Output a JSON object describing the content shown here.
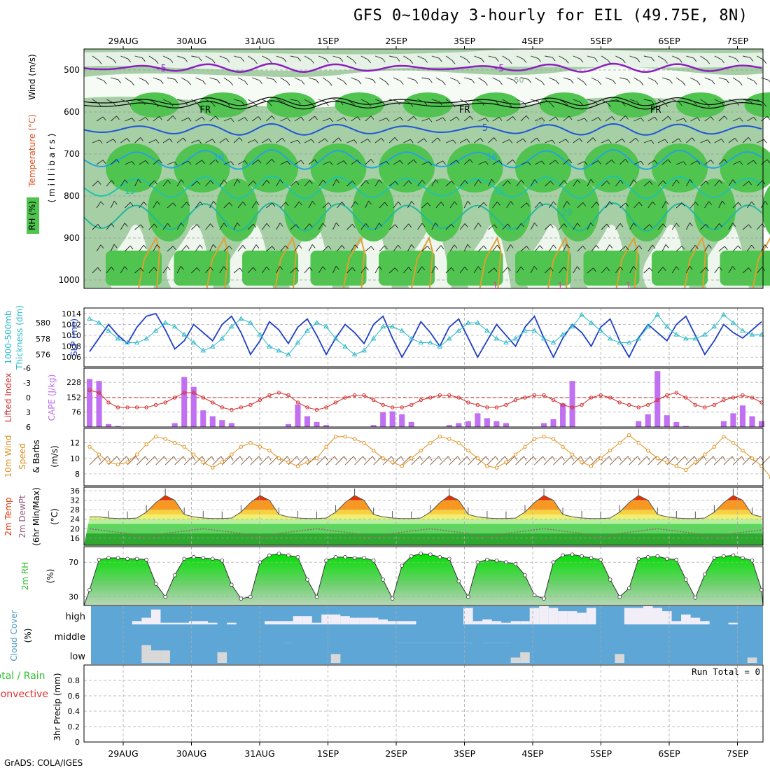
{
  "title": "GFS 0~10day 3-hourly for EIL (49.75E, 8N)",
  "footer": "GrADS: COLA/IGES",
  "dates": [
    "29AUG",
    "30AUG",
    "31AUG",
    "1SEP",
    "2SEP",
    "3SEP",
    "4SEP",
    "5SEP",
    "6SEP",
    "7SEP"
  ],
  "colors": {
    "rh_dark": "#4fc44f",
    "rh_mid": "#a6cfa6",
    "rh_light": "#e6f2e6",
    "isotherm_purple": "#8b1fbf",
    "isotherm_blue": "#1f55d6",
    "isotherm_cyan": "#1fa8d6",
    "isotherm_teal": "#1fc4a8",
    "isotherm_orange": "#e0a030",
    "freezing": "#000000",
    "slp": "#1f3fc8",
    "thickness": "#2ab8c8",
    "lifted": "#d43030",
    "cape": "#c070f0",
    "wind": "#e09020",
    "barb": "#8a6040",
    "temp_red": "#e83000",
    "dew": "#9a6080",
    "rh2m": "#2fbf2f",
    "cloud_bg": "#5da6d6",
    "cloud_fill": "#f2eef8",
    "precip_total": "#2fbf2f",
    "precip_conv": "#e03030"
  },
  "chart_data": [
    {
      "type": "area",
      "name": "sounding",
      "ylabel": [
        "RH (%)",
        "Temperature (°C)",
        "Wind (m/s)",
        "( m i l l i b a r s )"
      ],
      "yticks": [
        500,
        600,
        700,
        800,
        900,
        1000
      ],
      "isotherm_labels": [
        {
          "text": "-5",
          "day": 0.55
        },
        {
          "text": "-5",
          "day": 5.5
        },
        {
          "text": "FR",
          "day": 1.2
        },
        {
          "text": "FR",
          "day": 5.0
        },
        {
          "text": "FR",
          "day": 7.8
        },
        {
          "text": "5",
          "day": 5.3
        },
        {
          "text": "10",
          "day": 1.4
        },
        {
          "text": "10",
          "day": 5.4
        },
        {
          "text": "15",
          "day": 0.1
        },
        {
          "text": "15",
          "day": 5.5
        },
        {
          "text": "20",
          "day": 6.5
        },
        {
          "text": "1",
          "day": 5.45
        },
        {
          "text": "1",
          "day": 6.4
        },
        {
          "text": "1",
          "day": 7.4
        }
      ],
      "annotations": [
        {
          "text": "50",
          "day": 5.8
        },
        {
          "text": "70",
          "day": 6.1
        }
      ]
    },
    {
      "type": "line",
      "name": "slp_thickness",
      "left_label": [
        "1000-500mb",
        "Thickness (dm)"
      ],
      "right_label": "SLP (mb)",
      "left_ticks": [
        576,
        578,
        580
      ],
      "right_ticks": [
        1006,
        1008,
        1010,
        1012,
        1014
      ],
      "series": [
        {
          "name": "SLP (mb)",
          "axis": "right",
          "values": [
            1007,
            1009.5,
            1012,
            1010,
            1008.5,
            1011.5,
            1013.5,
            1014,
            1011,
            1007.5,
            1009,
            1012,
            1010.5,
            1009,
            1012,
            1013.5,
            1010.5,
            1006.5,
            1009,
            1012.5,
            1011,
            1008.5,
            1011.5,
            1013,
            1010,
            1006.5,
            1009.5,
            1012,
            1010.5,
            1008.5,
            1012,
            1013.5,
            1009.5,
            1006,
            1009,
            1012.5,
            1010.5,
            1008,
            1011.5,
            1013,
            1009.5,
            1006,
            1009,
            1012,
            1010,
            1008,
            1011.5,
            1013.5,
            1009.5,
            1006,
            1009.5,
            1012,
            1010.5,
            1008,
            1011.5,
            1013,
            1009,
            1006,
            1009.5,
            1012,
            1010.5,
            1009,
            1012,
            1013.5,
            1010,
            1006.5,
            1009,
            1012,
            1010.5,
            1009.5,
            1011,
            1012.5
          ]
        },
        {
          "name": "1000-500mb Thickness (dm)",
          "axis": "left",
          "values": [
            580.5,
            580,
            579,
            578,
            577.5,
            577.5,
            578,
            579,
            580,
            579.5,
            578.5,
            577.5,
            576.5,
            577,
            578,
            579.5,
            580.5,
            580,
            578.5,
            577,
            576.5,
            576,
            577.5,
            579,
            580,
            579.5,
            578,
            577,
            576,
            576.5,
            578,
            579.5,
            579.5,
            579,
            578,
            577.5,
            577.5,
            577,
            578,
            579,
            580,
            580,
            579,
            578,
            577.5,
            578,
            579,
            579,
            578,
            577.5,
            578.5,
            579.5,
            581,
            580,
            579,
            578,
            577.5,
            577.5,
            578,
            579.5,
            581,
            579.5,
            578.5,
            578,
            578,
            578.5,
            579.5,
            581,
            580,
            579,
            578.5,
            578.5
          ]
        }
      ]
    },
    {
      "type": "bar",
      "name": "lifted_cape",
      "left_label": "Lifted Index",
      "right_label": "CAPE (J/kg)",
      "left_ticks": [
        -6,
        -3,
        0,
        3,
        6
      ],
      "right_ticks": [
        76,
        152,
        228
      ],
      "series": [
        {
          "name": "CAPE (J/kg)",
          "values": [
            245,
            235,
            15,
            5,
            0,
            0,
            0,
            0,
            0,
            20,
            255,
            205,
            85,
            55,
            35,
            20,
            0,
            0,
            0,
            0,
            0,
            15,
            115,
            55,
            25,
            10,
            0,
            0,
            0,
            0,
            10,
            75,
            80,
            65,
            25,
            0,
            0,
            0,
            10,
            20,
            30,
            70,
            45,
            30,
            20,
            0,
            0,
            0,
            20,
            40,
            120,
            235,
            0,
            0,
            0,
            0,
            0,
            0,
            30,
            65,
            285,
            60,
            25,
            5,
            0,
            0,
            0,
            30,
            70,
            110,
            55,
            30
          ]
        },
        {
          "name": "Lifted Index",
          "values": [
            -1.5,
            -1,
            1,
            2,
            2,
            2,
            2,
            1.5,
            1,
            0,
            -1,
            -1,
            0,
            1,
            2,
            2.5,
            2,
            1.5,
            0.5,
            -0.5,
            -1,
            -0.5,
            1,
            2,
            2.5,
            2,
            1,
            0,
            -0.5,
            -0.5,
            0.5,
            1.5,
            2,
            2,
            1.5,
            0.5,
            0,
            -0.5,
            -0.5,
            0,
            1,
            1.5,
            2,
            2,
            1.5,
            0.5,
            0,
            -0.5,
            -0.5,
            0.5,
            1.5,
            2,
            1.5,
            0,
            -0.5,
            0,
            1,
            1.5,
            2,
            1.5,
            0.5,
            -0.5,
            -1,
            0,
            1.5,
            2,
            1.5,
            0.5,
            0,
            -0.5,
            0,
            1
          ]
        }
      ]
    },
    {
      "type": "line",
      "name": "wind10m",
      "left_label": [
        "10m Wind",
        "Speed",
        "& Barbs"
      ],
      "unit": "(m/s)",
      "yticks": [
        8,
        10,
        12
      ],
      "series": [
        {
          "name": "10m Wind Speed",
          "values": [
            11.5,
            10.5,
            9.5,
            9.2,
            9.5,
            10.5,
            11.8,
            12.8,
            12.5,
            12,
            11.5,
            10.5,
            9.5,
            8.8,
            9.5,
            10.5,
            11.5,
            12,
            11.5,
            11,
            10,
            9.5,
            9,
            9.5,
            10,
            11.5,
            12.8,
            12.8,
            12.5,
            12,
            11,
            10,
            9.5,
            9,
            10,
            11,
            12,
            12.8,
            12.5,
            12,
            11,
            10,
            9,
            8.8,
            9.5,
            10.5,
            11.5,
            12.5,
            12.8,
            12.5,
            11.5,
            10.5,
            9.5,
            9,
            10,
            11,
            12,
            13,
            12,
            11,
            10,
            9.5,
            9,
            8.5,
            9.5,
            10.5,
            11.5,
            12.8,
            12,
            11,
            10,
            9,
            7.5,
            12.5
          ]
        }
      ]
    },
    {
      "type": "area",
      "name": "temp2m",
      "left_label": [
        "2m Temp",
        "2m DewPt",
        "(6hr Min/Max)"
      ],
      "unit": "(°C)",
      "yticks": [
        16,
        20,
        24,
        28,
        32,
        36
      ],
      "series": [
        {
          "name": "2m Temp",
          "values": [
            25,
            25,
            24.5,
            24.3,
            24.3,
            24.5,
            27,
            31,
            34,
            32,
            26,
            25,
            24.5,
            24.3,
            24.3,
            24.5,
            27,
            31,
            34,
            32,
            26,
            25,
            24.5,
            24.3,
            24.3,
            24.5,
            27,
            31,
            34,
            32,
            26,
            25,
            24.5,
            24.3,
            24.3,
            24.5,
            27,
            31,
            34,
            32,
            26,
            25,
            24.5,
            24.3,
            24.3,
            24.5,
            27,
            31,
            34,
            32,
            26,
            25,
            24.5,
            24.3,
            24.3,
            24.5,
            27,
            31,
            34,
            32,
            26,
            25,
            24.5,
            24.3,
            24.3,
            24.5,
            27,
            31,
            34,
            32,
            26,
            25
          ]
        },
        {
          "name": "2m DewPt",
          "values": [
            20,
            19.5,
            19,
            18.5,
            18,
            17,
            16,
            17,
            18,
            18.5,
            19,
            19.5,
            20,
            19.5,
            19,
            18.5,
            18,
            17,
            16,
            17,
            18,
            18.5,
            19,
            19.5,
            20,
            19.5,
            19,
            18.5,
            18,
            17,
            16,
            17,
            18,
            18.5,
            19,
            19.5,
            20,
            19.5,
            19,
            18.5,
            18,
            17,
            16,
            17,
            18,
            18.5,
            19,
            19.5,
            20,
            19.5,
            19,
            18.5,
            18,
            17,
            16,
            17,
            18,
            18.5,
            19,
            19.5,
            20,
            19.5,
            19,
            18.5,
            18,
            17,
            16,
            17,
            18,
            18.5,
            19,
            19.5
          ]
        }
      ]
    },
    {
      "type": "area",
      "name": "rh2m",
      "left_label": "2m RH",
      "unit": "(%)",
      "yticks": [
        30,
        70
      ],
      "series": [
        {
          "name": "2m RH",
          "values": [
            38,
            73,
            75,
            75,
            74,
            74,
            73,
            45,
            30,
            55,
            74,
            76,
            75,
            74,
            72,
            44,
            28,
            30,
            70,
            78,
            80,
            78,
            76,
            50,
            30,
            72,
            76,
            76,
            75,
            75,
            72,
            50,
            28,
            66,
            77,
            80,
            79,
            76,
            74,
            48,
            30,
            70,
            73,
            72,
            70,
            68,
            55,
            32,
            28,
            70,
            78,
            79,
            77,
            75,
            73,
            50,
            30,
            40,
            74,
            76,
            77,
            74,
            73,
            50,
            29,
            56,
            75,
            77,
            78,
            75,
            72,
            38
          ]
        }
      ]
    },
    {
      "type": "bar",
      "name": "cloud",
      "left_label": [
        "Cloud Cover",
        "(%)"
      ],
      "yticks": [
        "high",
        "middle",
        "low"
      ],
      "series": [
        {
          "name": "high",
          "values": [
            0,
            0,
            0,
            0,
            0,
            10,
            20,
            45,
            5,
            5,
            5,
            10,
            10,
            5,
            0,
            5,
            0,
            0,
            0,
            10,
            10,
            10,
            25,
            25,
            5,
            30,
            30,
            25,
            20,
            20,
            20,
            15,
            10,
            10,
            10,
            0,
            0,
            0,
            0,
            0,
            50,
            10,
            15,
            10,
            5,
            10,
            10,
            50,
            55,
            50,
            40,
            40,
            35,
            50,
            0,
            0,
            0,
            50,
            50,
            55,
            50,
            40,
            10,
            30,
            20,
            10,
            0,
            0,
            5,
            0,
            0,
            0
          ]
        },
        {
          "name": "middle",
          "values": [
            0,
            0,
            0,
            0,
            0,
            0,
            0,
            0,
            0,
            0,
            0,
            0,
            0,
            0,
            0,
            0,
            0,
            0,
            0,
            0,
            0,
            5,
            0,
            0,
            0,
            0,
            0,
            0,
            0,
            0,
            0,
            0,
            0,
            5,
            5,
            5,
            5,
            5,
            5,
            5,
            5,
            0,
            5,
            5,
            5,
            0,
            0,
            0,
            0,
            0,
            0,
            0,
            0,
            0,
            0,
            0,
            0,
            0,
            0,
            0,
            0,
            0,
            0,
            0,
            0,
            0,
            0,
            0,
            0,
            0,
            0,
            0
          ]
        },
        {
          "name": "low",
          "values": [
            0,
            0,
            0,
            0,
            0,
            0,
            50,
            35,
            35,
            0,
            0,
            0,
            0,
            0,
            30,
            0,
            0,
            0,
            0,
            0,
            0,
            0,
            0,
            0,
            0,
            0,
            25,
            0,
            0,
            0,
            0,
            0,
            0,
            0,
            0,
            0,
            0,
            0,
            0,
            0,
            0,
            0,
            0,
            0,
            0,
            15,
            30,
            0,
            0,
            0,
            0,
            0,
            0,
            0,
            0,
            0,
            25,
            0,
            0,
            0,
            0,
            0,
            0,
            0,
            0,
            0,
            0,
            0,
            0,
            0,
            15,
            0
          ]
        }
      ]
    },
    {
      "type": "bar",
      "name": "precip",
      "left_label": [
        "Total / Rain",
        "Convective"
      ],
      "ylabel": "3hr Precip (mm)",
      "yticks": [
        0,
        0.2,
        0.4,
        0.6,
        0.8
      ],
      "ylim": [
        0,
        1
      ],
      "run_total": "Run Total = 0",
      "series": [
        {
          "name": "Total / Rain",
          "values": []
        },
        {
          "name": "Convective",
          "values": []
        }
      ]
    }
  ]
}
